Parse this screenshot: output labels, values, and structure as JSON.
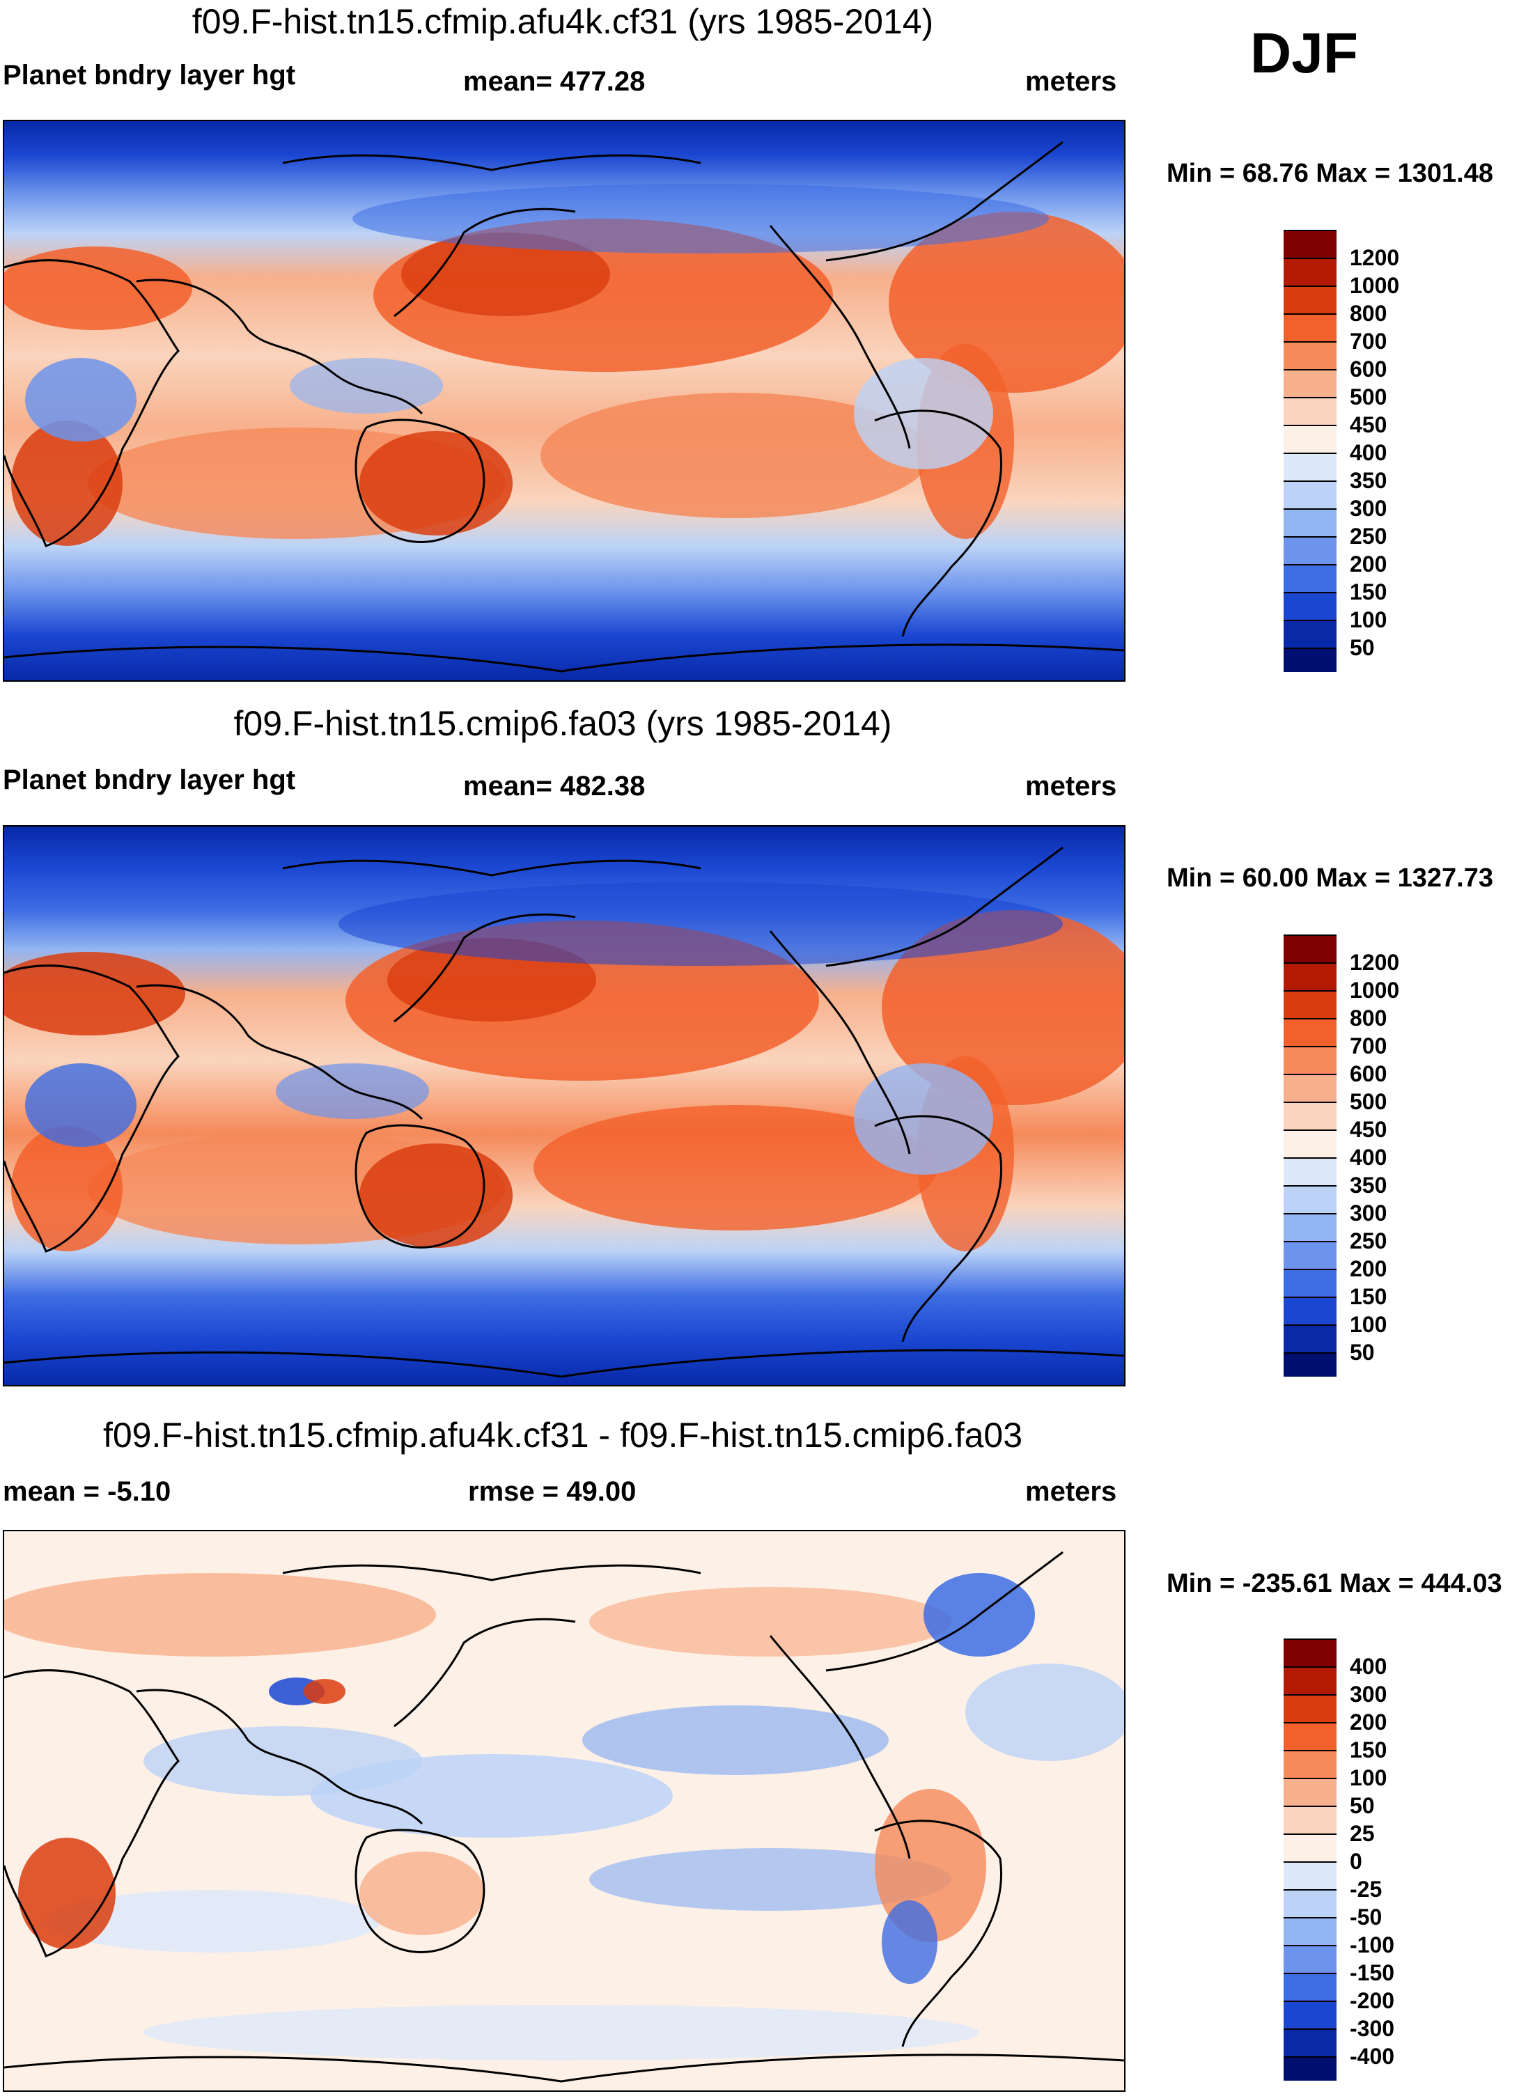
{
  "season": "DJF",
  "panels": [
    {
      "id": "top",
      "title": "f09.F-hist.tn15.cfmip.afu4k.cf31 (yrs 1985-2014)",
      "left_label": "Planet bndry layer hgt",
      "center_label": "mean= 477.28",
      "right_label": "meters",
      "minmax": "Min =  68.76 Max = 1301.48",
      "colorbar": {
        "labels": [
          "1200",
          "1000",
          "800",
          "700",
          "600",
          "500",
          "450",
          "400",
          "350",
          "300",
          "250",
          "200",
          "150",
          "100",
          "50"
        ],
        "colors": [
          "#7f0000",
          "#b31a00",
          "#d93d0f",
          "#f2602b",
          "#f58a5a",
          "#f7b08c",
          "#fad4bd",
          "#fdf0e6",
          "#dde9fa",
          "#bcd3f7",
          "#93b5f2",
          "#6c94ec",
          "#3d6de3",
          "#1a46d1",
          "#0829a8",
          "#000f6f"
        ]
      }
    },
    {
      "id": "middle",
      "title": "f09.F-hist.tn15.cmip6.fa03 (yrs 1985-2014)",
      "left_label": "Planet bndry layer hgt",
      "center_label": "mean= 482.38",
      "right_label": "meters",
      "minmax": "Min =  60.00 Max = 1327.73",
      "colorbar": {
        "labels": [
          "1200",
          "1000",
          "800",
          "700",
          "600",
          "500",
          "450",
          "400",
          "350",
          "300",
          "250",
          "200",
          "150",
          "100",
          "50"
        ],
        "colors": [
          "#7f0000",
          "#b31a00",
          "#d93d0f",
          "#f2602b",
          "#f58a5a",
          "#f7b08c",
          "#fad4bd",
          "#fdf0e6",
          "#dde9fa",
          "#bcd3f7",
          "#93b5f2",
          "#6c94ec",
          "#3d6de3",
          "#1a46d1",
          "#0829a8",
          "#000f6f"
        ]
      }
    },
    {
      "id": "bottom",
      "title": "f09.F-hist.tn15.cfmip.afu4k.cf31 - f09.F-hist.tn15.cmip6.fa03",
      "left_label": "mean =  -5.10",
      "center_label": "rmse =  49.00",
      "right_label": "meters",
      "minmax": "Min = -235.61 Max = 444.03",
      "colorbar": {
        "labels": [
          "400",
          "300",
          "200",
          "150",
          "100",
          "50",
          "25",
          "0",
          "-25",
          "-50",
          "-100",
          "-150",
          "-200",
          "-300",
          "-400"
        ],
        "colors": [
          "#7f0000",
          "#b31a00",
          "#d93d0f",
          "#f2602b",
          "#f58a5a",
          "#f7b08c",
          "#fad4bd",
          "#fdf0e6",
          "#dde9fa",
          "#bcd3f7",
          "#93b5f2",
          "#6c94ec",
          "#3d6de3",
          "#1a46d1",
          "#0829a8",
          "#000f6f"
        ]
      }
    }
  ]
}
